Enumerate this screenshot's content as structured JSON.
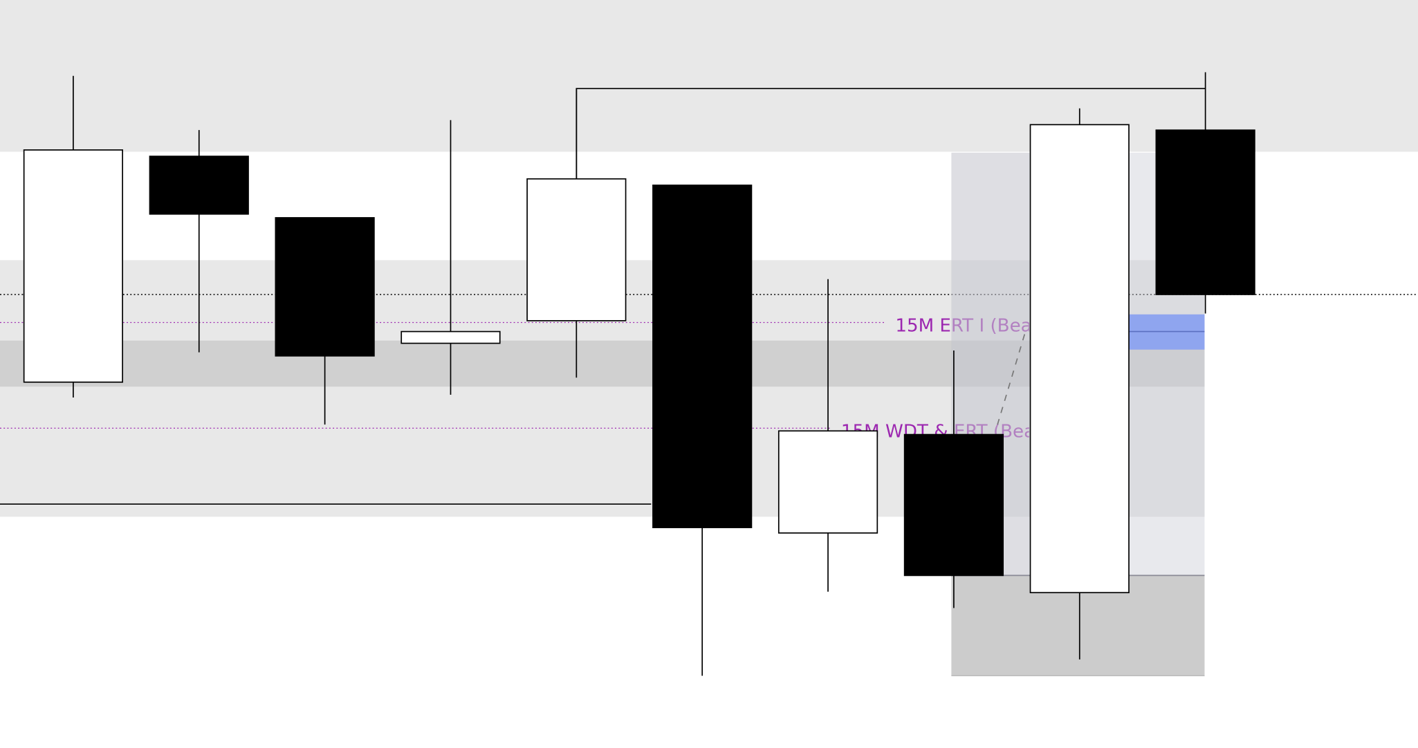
{
  "chart_data": {
    "type": "candlestick",
    "grid": false,
    "colors": {
      "bullish_body": "#ffffff",
      "bearish_body": "#000000",
      "outline": "#000000",
      "zone_light": "#e8e8e8",
      "zone_dark": "#d0d0d0",
      "box_upper": "#e8e9ed",
      "box_lower": "#cccccc",
      "label": "#9c27b0",
      "highlight": "#8fa5ef",
      "highlight_line": "#5a6fc0",
      "dashed_connector": "#777777"
    },
    "candles": [
      {
        "open": 40.5,
        "high": 74.4,
        "low": 38.8,
        "close": 66.2
      },
      {
        "open": 65.5,
        "high": 68.4,
        "low": 43.8,
        "close": 59.1
      },
      {
        "open": 58.7,
        "high": 58.7,
        "low": 35.8,
        "close": 43.4
      },
      {
        "open": 44.8,
        "high": 69.5,
        "low": 39.1,
        "close": 46.1
      },
      {
        "open": 47.3,
        "high": 73.0,
        "low": 41.0,
        "close": 63.0
      },
      {
        "open": 62.3,
        "high": 62.3,
        "low": 8.0,
        "close": 24.4
      },
      {
        "open": 23.8,
        "high": 51.9,
        "low": 17.3,
        "close": 35.1
      },
      {
        "open": 34.7,
        "high": 44.0,
        "low": 15.5,
        "close": 19.1
      },
      {
        "open": 17.2,
        "high": 70.8,
        "low": 9.8,
        "close": 69.0
      },
      {
        "open": 68.4,
        "high": 74.8,
        "low": 48.1,
        "close": 50.2
      }
    ],
    "zones": [
      {
        "name": "top-zone",
        "top": 82.8,
        "bottom": 66.0,
        "from": 0,
        "to": 10,
        "color": "#e8e8e8"
      },
      {
        "name": "middle-zone",
        "top": 54.0,
        "bottom": 25.6,
        "from": 0,
        "to": 9.5,
        "color": "#e8e8e8"
      },
      {
        "name": "inner-zone",
        "top": 45.1,
        "bottom": 40.0,
        "from": 0,
        "to": 9.5,
        "color": "#d0d0d0"
      }
    ],
    "range_box": {
      "top": 65.9,
      "mid": 19.1,
      "bottom": 8.0,
      "from": 7,
      "to": 9.5
    },
    "highlight_box": {
      "top": 48.0,
      "bottom": 44.1,
      "line": 46.1,
      "from": 8.5,
      "to": 9.5
    },
    "levels": [
      {
        "name": "dotted-level",
        "price": 50.2,
        "style": "dotted",
        "color": "#000000",
        "from": 0,
        "to": 10
      },
      {
        "name": "solid-level",
        "price": 27.0,
        "style": "solid",
        "color": "#000000",
        "from": 0,
        "to": 5
      }
    ],
    "bracket": {
      "price": 73.0,
      "from_candle": 4,
      "to_candle": 9
    },
    "labeled_levels": [
      {
        "label": "15M ERT I (Bea",
        "price": 47.1,
        "line_to": 6.4
      },
      {
        "label": "15M WDT & ERT (Bea",
        "price": 35.4,
        "line_to": 6.0
      }
    ],
    "connector": {
      "from_price": 45.8,
      "to_price": 35.8
    }
  }
}
